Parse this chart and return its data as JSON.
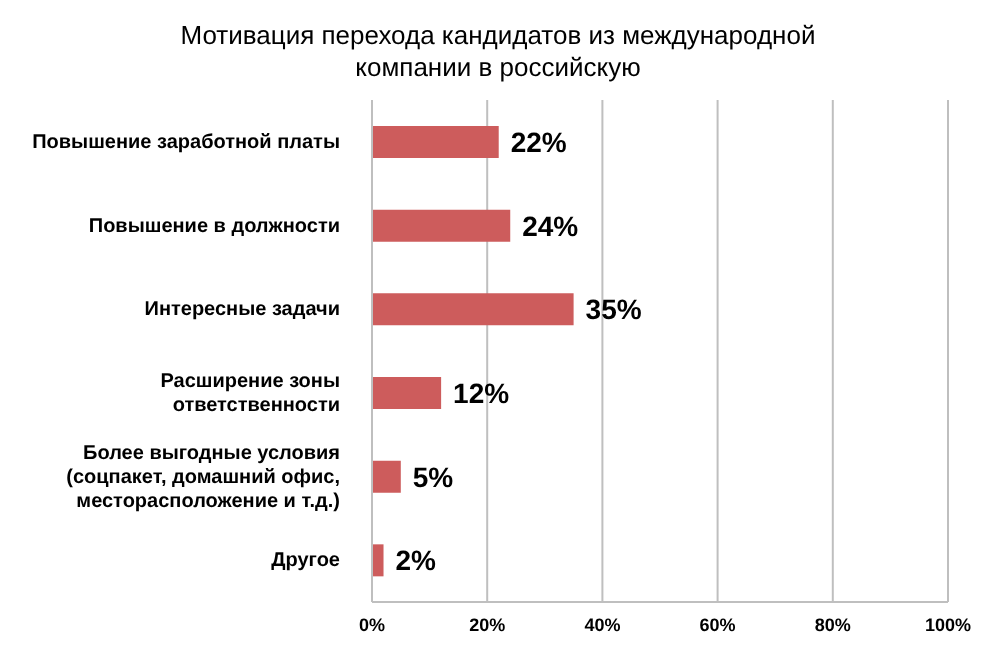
{
  "chart_data": {
    "type": "bar",
    "orientation": "horizontal",
    "title": "Мотивация перехода кандидатов из международной компании в российскую",
    "categories": [
      "Повышение заработной платы",
      "Повышение в должности",
      "Интересные задачи",
      "Расширение зоны ответственности",
      "Более выгодные условия (соцпакет, домашний офис, месторасположение и т.д.)",
      "Другое"
    ],
    "values": [
      22,
      24,
      35,
      12,
      5,
      2
    ],
    "value_labels": [
      "22%",
      "24%",
      "35%",
      "12%",
      "5%",
      "2%"
    ],
    "color": "#cd5c5c",
    "xlim": [
      0,
      100
    ],
    "xticks": [
      {
        "value": 0,
        "label": "0%"
      },
      {
        "value": 20,
        "label": "20%"
      },
      {
        "value": 40,
        "label": "40%"
      },
      {
        "value": 60,
        "label": "60%"
      },
      {
        "value": 80,
        "label": "80%"
      },
      {
        "value": 100,
        "label": "100%"
      }
    ],
    "grid": "x",
    "legend": false
  }
}
